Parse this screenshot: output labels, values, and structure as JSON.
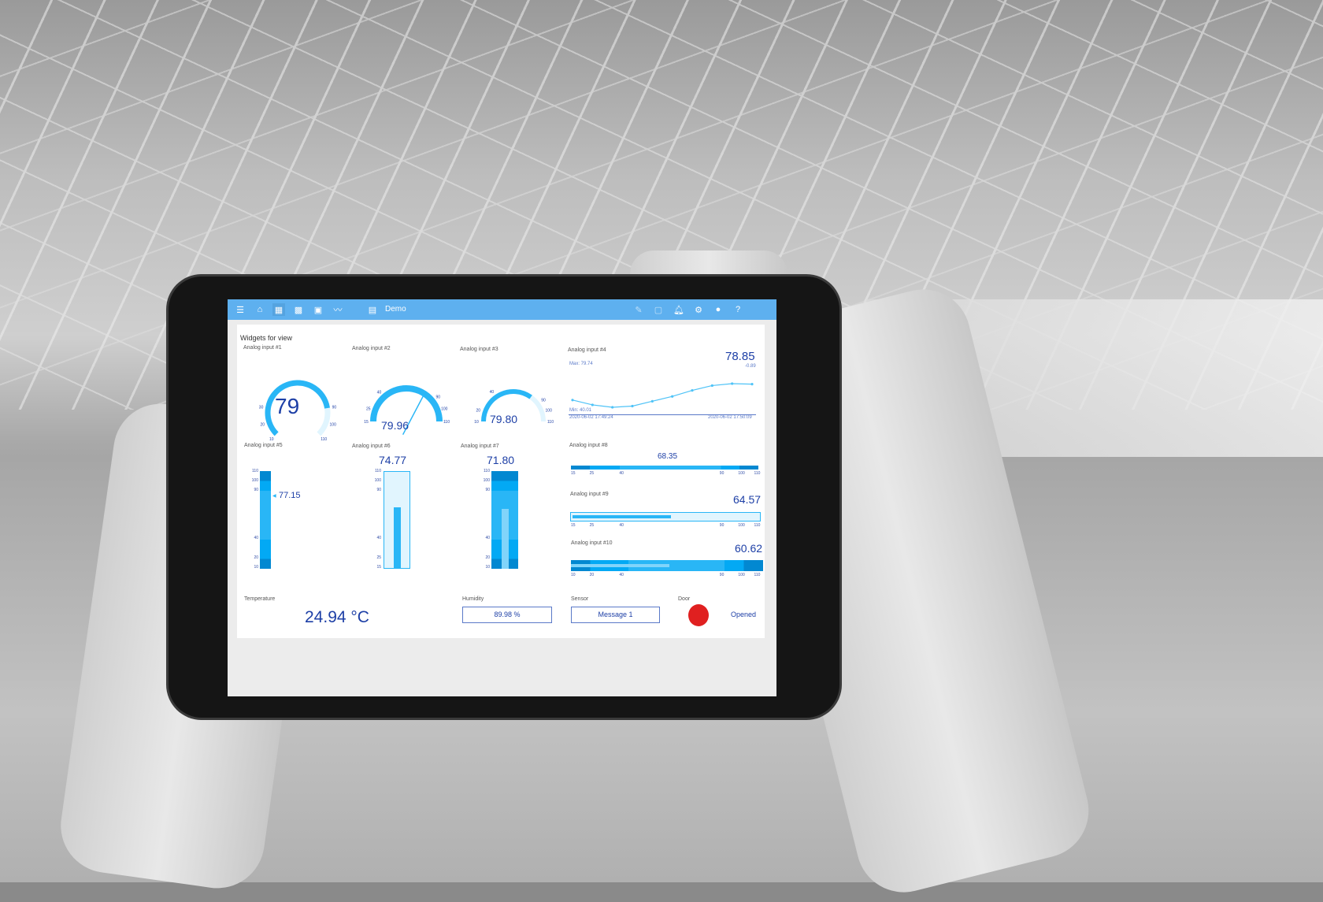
{
  "topbar": {
    "title": "Demo",
    "icons": [
      "menu-icon",
      "home-icon",
      "dashboard-icon",
      "widgets-icon",
      "calendar-icon",
      "chart-icon",
      "grid-icon",
      "edit-icon",
      "list-icon",
      "bell-icon",
      "gear-icon",
      "account-icon",
      "help-icon"
    ]
  },
  "panel_title": "Widgets for view",
  "gauges": [
    {
      "label": "Analog input #1",
      "value": "79",
      "min": 10,
      "max": 110,
      "num": 79,
      "ticks": [
        "10",
        "20",
        "30",
        "90",
        "100",
        "110"
      ]
    },
    {
      "label": "Analog input #2",
      "value": "79.96",
      "min": 15,
      "max": 110,
      "num": 79.96,
      "ticks": [
        "15",
        "25",
        "40",
        "90",
        "100",
        "110"
      ]
    },
    {
      "label": "Analog input #3",
      "value": "79.80",
      "min": 10,
      "max": 110,
      "num": 79.8,
      "ticks": [
        "10",
        "20",
        "40",
        "90",
        "100",
        "110"
      ]
    }
  ],
  "trend": {
    "label": "Analog input #4",
    "value": "78.85",
    "delta": "-0.89",
    "max": "Max: 79.74",
    "min": "Min: 40.01",
    "start": "2020-06-02 17:49:24",
    "end": "2020-06-02 17:50:09",
    "chart_data": {
      "type": "line",
      "values": [
        78.1,
        77.9,
        77.8,
        77.85,
        78.05,
        78.25,
        78.5,
        78.7,
        78.78,
        78.76
      ]
    }
  },
  "vbars": [
    {
      "label": "Analog input #5",
      "value": "77.15",
      "ticks": [
        "110",
        "100",
        "90",
        "40",
        "20",
        "10"
      ]
    },
    {
      "label": "Analog input #6",
      "value": "74.77",
      "ticks": [
        "110",
        "100",
        "90",
        "40",
        "25",
        "15"
      ]
    },
    {
      "label": "Analog input #7",
      "value": "71.80",
      "ticks": [
        "110",
        "100",
        "90",
        "40",
        "20",
        "10"
      ]
    }
  ],
  "hbars": [
    {
      "label": "Analog input #8",
      "value": "68.35",
      "ticks": [
        "15",
        "25",
        "40",
        "90",
        "100",
        "110"
      ]
    },
    {
      "label": "Analog input #9",
      "value": "64.57",
      "ticks": [
        "15",
        "25",
        "40",
        "90",
        "100",
        "110"
      ]
    },
    {
      "label": "Analog input #10",
      "value": "60.62",
      "ticks": [
        "10",
        "20",
        "40",
        "90",
        "100",
        "110"
      ]
    }
  ],
  "bottom": {
    "temperature": {
      "label": "Temperature",
      "value": "24.94 °C"
    },
    "humidity": {
      "label": "Humidity",
      "value": "89.98 %"
    },
    "sensor": {
      "label": "Sensor",
      "value": "Message 1"
    },
    "door": {
      "label": "Door",
      "value": "Opened",
      "color": "#e02020"
    }
  },
  "colors": {
    "accent": "#29b6f6",
    "dark": "#0288d1",
    "light": "#e1f5fe",
    "text": "#1d3fa6",
    "bar": "#5eb0ef"
  }
}
